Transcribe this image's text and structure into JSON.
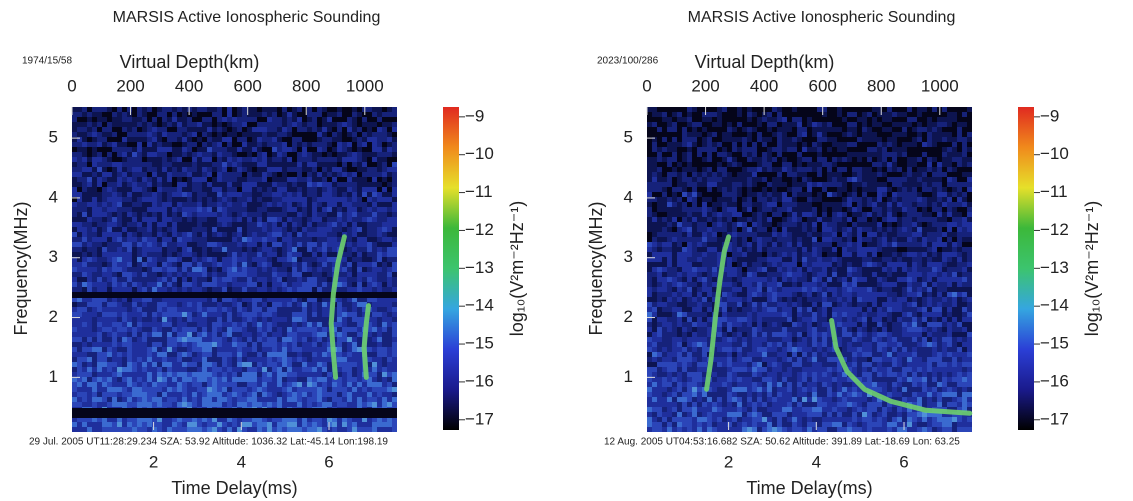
{
  "chart_data": [
    {
      "type": "spectrogram",
      "title": "MARSIS Active Ionospheric Sounding",
      "date_label": "1974/15/58",
      "x_label": "Time Delay(ms)",
      "x2_label": "Virtual Depth(km)",
      "y_label": "Frequency(MHz)",
      "colorbar_label": "log₁₀(V²m⁻²Hz⁻¹)",
      "footer": "29 Jul. 2005 UT11:28:29.234  SZA: 53.92  Altitude: 1036.32  Lat:-45.14 Lon:198.19",
      "xlim": [
        0.14,
        7.55
      ],
      "xticks": [
        2,
        4,
        6
      ],
      "x2lim": [
        0,
        1110
      ],
      "x2ticks": [
        0,
        200,
        400,
        600,
        800,
        1000
      ],
      "ylim": [
        0.12,
        5.52
      ],
      "yticks": [
        1,
        2,
        3,
        4,
        5
      ],
      "clim": [
        -17.27,
        -8.74
      ],
      "cticks": [
        {
          "value": -9,
          "label": "−9"
        },
        {
          "value": -10,
          "label": "−10"
        },
        {
          "value": -11,
          "label": "−11"
        },
        {
          "value": -12,
          "label": "−12"
        },
        {
          "value": -13,
          "label": "−13"
        },
        {
          "value": -14,
          "label": "−14"
        },
        {
          "value": -15,
          "label": "−15"
        },
        {
          "value": -16,
          "label": "−16"
        },
        {
          "value": -17,
          "label": "−17"
        }
      ],
      "colormap": [
        "#000000",
        "#1a1a8c",
        "#2b3fd6",
        "#35a6e0",
        "#3cc46e",
        "#3cb83a",
        "#e6e02a",
        "#f08a1c",
        "#e02a20"
      ],
      "series": [
        {
          "color": "#6ed06e",
          "x": [
            6.15,
            6.1,
            6.05,
            6.1,
            6.2,
            6.3,
            6.35
          ],
          "values": [
            1.0,
            1.4,
            1.9,
            2.4,
            2.9,
            3.2,
            3.35
          ]
        },
        {
          "color": "#6ed06e",
          "x": [
            6.85,
            6.8,
            6.85,
            6.9
          ],
          "values": [
            1.0,
            1.5,
            1.9,
            2.2
          ]
        }
      ]
    },
    {
      "type": "spectrogram",
      "title": "MARSIS Active Ionospheric Sounding",
      "date_label": "2023/100/286",
      "x_label": "Time Delay(ms)",
      "x2_label": "Virtual Depth(km)",
      "y_label": "Frequency(MHz)",
      "colorbar_label": "log₁₀(V²m⁻²Hz⁻¹)",
      "footer": "12 Aug. 2005 UT04:53:16.682   SZA: 50.62  Altitude:   391.89 Lat:-18.69 Lon: 63.25",
      "xlim": [
        0.14,
        7.55
      ],
      "xticks": [
        2,
        4,
        6
      ],
      "x2lim": [
        0,
        1110
      ],
      "x2ticks": [
        0,
        200,
        400,
        600,
        800,
        1000
      ],
      "ylim": [
        0.12,
        5.52
      ],
      "yticks": [
        1,
        2,
        3,
        4,
        5
      ],
      "clim": [
        -17.27,
        -8.74
      ],
      "cticks": [
        {
          "value": -9,
          "label": "−9"
        },
        {
          "value": -10,
          "label": "−10"
        },
        {
          "value": -11,
          "label": "−11"
        },
        {
          "value": -12,
          "label": "−12"
        },
        {
          "value": -13,
          "label": "−13"
        },
        {
          "value": -14,
          "label": "−14"
        },
        {
          "value": -15,
          "label": "−15"
        },
        {
          "value": -16,
          "label": "−16"
        },
        {
          "value": -17,
          "label": "−17"
        }
      ],
      "colormap": [
        "#000000",
        "#1a1a8c",
        "#2b3fd6",
        "#35a6e0",
        "#3cc46e",
        "#3cb83a",
        "#e6e02a",
        "#f08a1c",
        "#e02a20"
      ],
      "series": [
        {
          "color": "#6ed06e",
          "x": [
            1.5,
            1.6,
            1.7,
            1.8,
            1.9,
            2.0
          ],
          "values": [
            0.8,
            1.3,
            2.0,
            2.6,
            3.1,
            3.35
          ]
        },
        {
          "color": "#6ed06e",
          "x": [
            4.35,
            4.45,
            4.7,
            5.1,
            5.7,
            6.5,
            7.5
          ],
          "values": [
            1.95,
            1.5,
            1.1,
            0.8,
            0.6,
            0.45,
            0.4
          ]
        }
      ]
    }
  ]
}
